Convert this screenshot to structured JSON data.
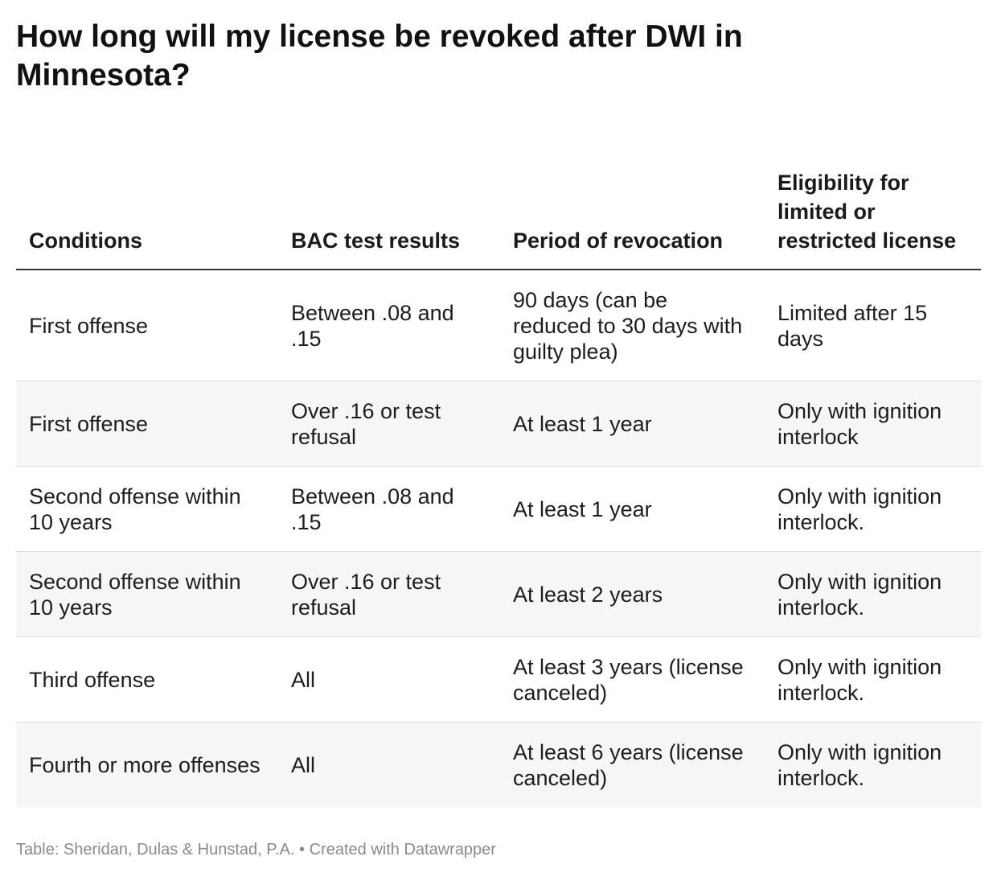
{
  "title": "How long will my license be revoked after DWI in Minnesota?",
  "table": {
    "headers": [
      "Conditions",
      "BAC test results",
      "Period of revocation",
      "Eligibility for limited or restricted license"
    ],
    "rows": [
      [
        "First offense",
        "Between .08 and .15",
        "90 days (can be reduced to 30 days with guilty plea)",
        "Limited after 15 days"
      ],
      [
        "First offense",
        "Over .16 or test refusal",
        "At least 1 year",
        "Only with ignition interlock"
      ],
      [
        "Second offense within 10 years",
        "Between .08 and .15",
        "At least 1 year",
        "Only with ignition interlock."
      ],
      [
        "Second offense within 10 years",
        "Over .16 or test refusal",
        "At least 2 years",
        "Only with ignition interlock."
      ],
      [
        "Third offense",
        "All",
        "At least 3 years (license canceled)",
        "Only with ignition interlock."
      ],
      [
        "Fourth or more offenses",
        "All",
        "At least 6 years (license canceled)",
        "Only with ignition interlock."
      ]
    ]
  },
  "footer": "Table: Sheridan, Dulas & Hunstad, P.A. • Created with Datawrapper",
  "colors": {
    "text": "#1d1d1d",
    "stripe": "#f6f6f6",
    "header_rule": "#333333",
    "row_divider": "#dcdcdc",
    "footer_text": "#8a8a8a"
  }
}
